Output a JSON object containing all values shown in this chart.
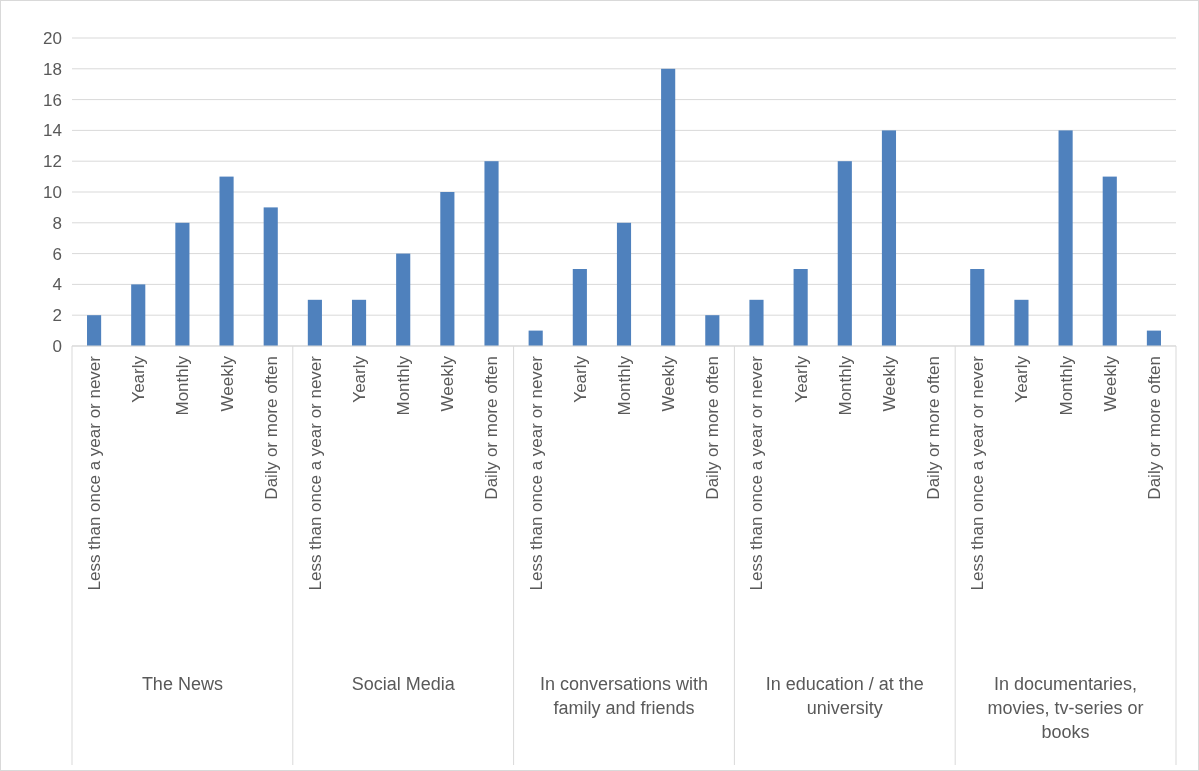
{
  "chart_data": {
    "type": "bar",
    "categories": [
      "Less than once a year or never",
      "Yearly",
      "Monthly",
      "Weekly",
      "Daily or more often",
      "Less than once a year or never",
      "Yearly",
      "Monthly",
      "Weekly",
      "Daily or more often",
      "Less than once a year or never",
      "Yearly",
      "Monthly",
      "Weekly",
      "Daily or more often",
      "Less than once a year or never",
      "Yearly",
      "Monthly",
      "Weekly",
      "Daily or more often",
      "Less than once a year or never",
      "Yearly",
      "Monthly",
      "Weekly",
      "Daily or more often"
    ],
    "values": [
      2,
      4,
      8,
      11,
      9,
      3,
      3,
      6,
      10,
      12,
      1,
      5,
      8,
      18,
      2,
      3,
      5,
      12,
      14,
      0,
      5,
      3,
      14,
      11,
      1
    ],
    "color": "#4f81bd",
    "ylim": [
      0,
      20
    ],
    "yticks": [
      0,
      2,
      4,
      6,
      8,
      10,
      12,
      14,
      16,
      18,
      20
    ],
    "grid": "y",
    "annotations": [
      "The News",
      "Social Media",
      "In conversations with family and friends",
      "In education / at the university",
      "In documentaries, movies, tv-series or books"
    ]
  }
}
